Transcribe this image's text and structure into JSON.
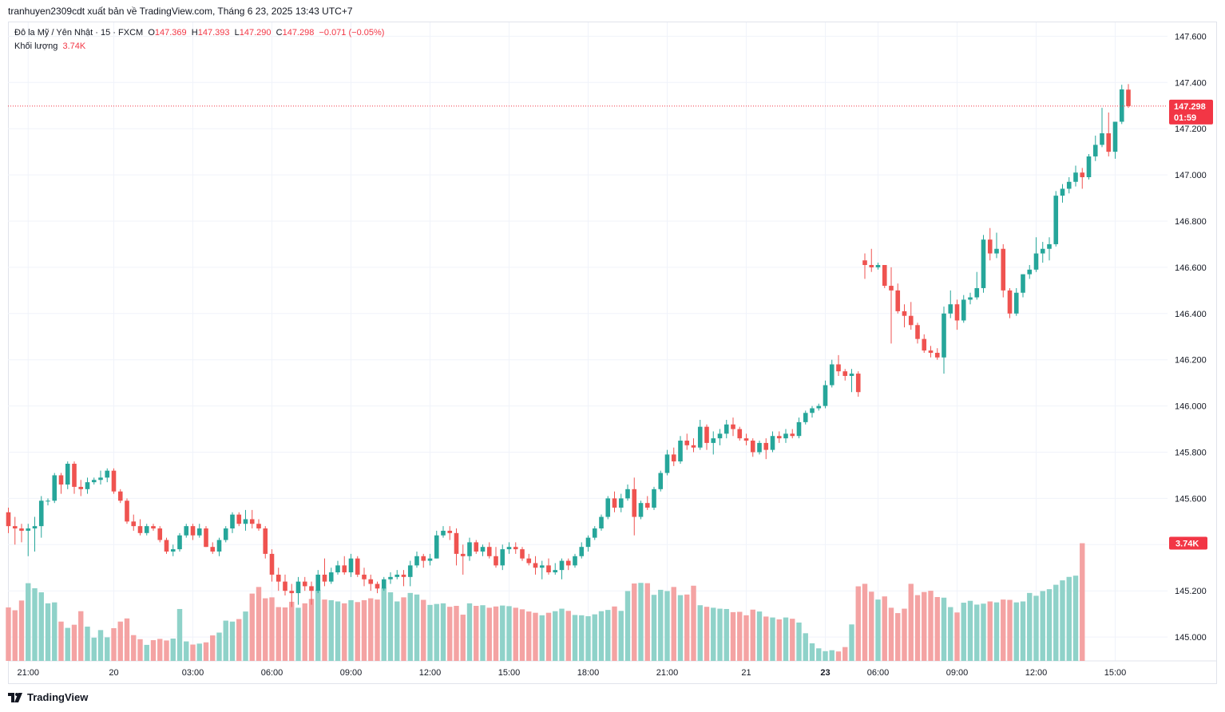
{
  "header": {
    "published_by": "tranhuyen2309cdt xuất bản về TradingView.com, Tháng 6 23, 2025 13:43 UTC+7"
  },
  "legend": {
    "symbol": "Đô la Mỹ / Yên Nhật · 15 · FXCM",
    "open_label": "O",
    "open": "147.369",
    "high_label": "H",
    "high": "147.393",
    "low_label": "L",
    "low": "147.290",
    "close_label": "C",
    "close": "147.298",
    "change": "−0.071 (−0.05%)",
    "volume_label": "Khối lượng",
    "volume": "3.74K"
  },
  "footer": {
    "brand": "TradingView"
  },
  "colors": {
    "up": "#26a69a",
    "down": "#ef5350",
    "up_volume": "#8fd2c9",
    "down_volume": "#f4a3a3",
    "price_badge": "#f23645",
    "grid": "#f0f3fa"
  },
  "chart_data": {
    "type": "candlestick",
    "symbol": "USDJPY",
    "interval": "15",
    "y_ticks": [
      "145.000",
      "145.200",
      "145.400",
      "145.600",
      "145.800",
      "146.000",
      "146.200",
      "146.400",
      "146.600",
      "146.800",
      "147.000",
      "147.200",
      "147.400",
      "147.600"
    ],
    "ylim": [
      144.9,
      147.68
    ],
    "x_ticks": [
      {
        "label": "21:00",
        "bar": 3,
        "bold": false
      },
      {
        "label": "20",
        "bar": 16,
        "bold": false
      },
      {
        "label": "03:00",
        "bar": 28,
        "bold": false
      },
      {
        "label": "06:00",
        "bar": 40,
        "bold": false
      },
      {
        "label": "09:00",
        "bar": 52,
        "bold": false
      },
      {
        "label": "12:00",
        "bar": 64,
        "bold": false
      },
      {
        "label": "15:00",
        "bar": 76,
        "bold": false
      },
      {
        "label": "18:00",
        "bar": 88,
        "bold": false
      },
      {
        "label": "21:00",
        "bar": 100,
        "bold": false
      },
      {
        "label": "21",
        "bar": 112,
        "bold": false
      },
      {
        "label": "23",
        "bar": 124,
        "bold": true
      },
      {
        "label": "06:00",
        "bar": 132,
        "bold": false
      },
      {
        "label": "09:00",
        "bar": 144,
        "bold": false
      },
      {
        "label": "12:00",
        "bar": 156,
        "bold": false
      },
      {
        "label": "15:00",
        "bar": 168,
        "bold": false
      }
    ],
    "last_price": {
      "value": 147.298,
      "label": "147.298",
      "countdown": "01:59"
    },
    "volume_badge": "3.74K",
    "ohlc": [
      [
        145.54,
        145.56,
        145.45,
        145.48
      ],
      [
        145.48,
        145.52,
        145.4,
        145.47
      ],
      [
        145.47,
        145.49,
        145.41,
        145.46
      ],
      [
        145.46,
        145.49,
        145.35,
        145.47
      ],
      [
        145.47,
        145.52,
        145.37,
        145.48
      ],
      [
        145.48,
        145.61,
        145.43,
        145.59
      ],
      [
        145.59,
        145.6,
        145.57,
        145.59
      ],
      [
        145.59,
        145.71,
        145.58,
        145.7
      ],
      [
        145.7,
        145.71,
        145.62,
        145.66
      ],
      [
        145.66,
        145.76,
        145.64,
        145.75
      ],
      [
        145.75,
        145.76,
        145.62,
        145.65
      ],
      [
        145.65,
        145.68,
        145.61,
        145.64
      ],
      [
        145.64,
        145.69,
        145.62,
        145.67
      ],
      [
        145.67,
        145.69,
        145.66,
        145.68
      ],
      [
        145.68,
        145.72,
        145.66,
        145.69
      ],
      [
        145.69,
        145.73,
        145.67,
        145.72
      ],
      [
        145.72,
        145.73,
        145.62,
        145.63
      ],
      [
        145.63,
        145.64,
        145.58,
        145.59
      ],
      [
        145.59,
        145.6,
        145.49,
        145.5
      ],
      [
        145.5,
        145.53,
        145.46,
        145.48
      ],
      [
        145.48,
        145.51,
        145.44,
        145.45
      ],
      [
        145.45,
        145.49,
        145.44,
        145.48
      ],
      [
        145.48,
        145.49,
        145.46,
        145.47
      ],
      [
        145.47,
        145.48,
        145.41,
        145.42
      ],
      [
        145.42,
        145.43,
        145.36,
        145.37
      ],
      [
        145.37,
        145.4,
        145.35,
        145.38
      ],
      [
        145.38,
        145.45,
        145.37,
        145.44
      ],
      [
        145.44,
        145.49,
        145.43,
        145.48
      ],
      [
        145.48,
        145.49,
        145.42,
        145.44
      ],
      [
        145.44,
        145.49,
        145.43,
        145.47
      ],
      [
        145.47,
        145.48,
        145.39,
        145.39
      ],
      [
        145.39,
        145.41,
        145.36,
        145.37
      ],
      [
        145.37,
        145.43,
        145.35,
        145.42
      ],
      [
        145.42,
        145.48,
        145.41,
        145.47
      ],
      [
        145.47,
        145.54,
        145.45,
        145.53
      ],
      [
        145.53,
        145.54,
        145.48,
        145.49
      ],
      [
        145.49,
        145.55,
        145.46,
        145.51
      ],
      [
        145.51,
        145.55,
        145.47,
        145.49
      ],
      [
        145.49,
        145.51,
        145.46,
        145.47
      ],
      [
        145.47,
        145.48,
        145.34,
        145.36
      ],
      [
        145.36,
        145.38,
        145.24,
        145.27
      ],
      [
        145.27,
        145.3,
        145.2,
        145.24
      ],
      [
        145.24,
        145.27,
        145.18,
        145.2
      ],
      [
        145.2,
        145.23,
        145.13,
        145.19
      ],
      [
        145.19,
        145.26,
        145.14,
        145.24
      ],
      [
        145.24,
        145.26,
        145.2,
        145.22
      ],
      [
        145.22,
        145.24,
        145.14,
        145.2
      ],
      [
        145.2,
        145.29,
        145.19,
        145.27
      ],
      [
        145.27,
        145.34,
        145.22,
        145.24
      ],
      [
        145.24,
        145.3,
        145.23,
        145.28
      ],
      [
        145.28,
        145.33,
        145.27,
        145.31
      ],
      [
        145.31,
        145.35,
        145.27,
        145.28
      ],
      [
        145.28,
        145.36,
        145.26,
        145.34
      ],
      [
        145.34,
        145.35,
        145.26,
        145.27
      ],
      [
        145.27,
        145.3,
        145.22,
        145.25
      ],
      [
        145.25,
        145.27,
        145.2,
        145.23
      ],
      [
        145.23,
        145.24,
        145.19,
        145.21
      ],
      [
        145.21,
        145.26,
        145.2,
        145.25
      ],
      [
        145.25,
        145.28,
        145.23,
        145.26
      ],
      [
        145.26,
        145.29,
        145.25,
        145.27
      ],
      [
        145.27,
        145.29,
        145.22,
        145.26
      ],
      [
        145.26,
        145.33,
        145.22,
        145.31
      ],
      [
        145.31,
        145.37,
        145.3,
        145.35
      ],
      [
        145.35,
        145.36,
        145.3,
        145.33
      ],
      [
        145.33,
        145.36,
        145.31,
        145.34
      ],
      [
        145.34,
        145.46,
        145.34,
        145.44
      ],
      [
        145.44,
        145.48,
        145.43,
        145.46
      ],
      [
        145.46,
        145.48,
        145.42,
        145.45
      ],
      [
        145.45,
        145.47,
        145.31,
        145.36
      ],
      [
        145.36,
        145.4,
        145.27,
        145.35
      ],
      [
        145.35,
        145.43,
        145.33,
        145.41
      ],
      [
        145.41,
        145.42,
        145.36,
        145.37
      ],
      [
        145.37,
        145.4,
        145.35,
        145.39
      ],
      [
        145.39,
        145.41,
        145.34,
        145.35
      ],
      [
        145.35,
        145.39,
        145.3,
        145.31
      ],
      [
        145.31,
        145.4,
        145.29,
        145.38
      ],
      [
        145.38,
        145.41,
        145.36,
        145.39
      ],
      [
        145.39,
        145.41,
        145.36,
        145.38
      ],
      [
        145.38,
        145.39,
        145.33,
        145.34
      ],
      [
        145.34,
        145.36,
        145.31,
        145.32
      ],
      [
        145.32,
        145.35,
        145.27,
        145.3
      ],
      [
        145.3,
        145.33,
        145.25,
        145.31
      ],
      [
        145.31,
        145.34,
        145.27,
        145.28
      ],
      [
        145.28,
        145.32,
        145.27,
        145.29
      ],
      [
        145.29,
        145.34,
        145.25,
        145.33
      ],
      [
        145.33,
        145.34,
        145.29,
        145.31
      ],
      [
        145.31,
        145.36,
        145.3,
        145.35
      ],
      [
        145.35,
        145.41,
        145.34,
        145.39
      ],
      [
        145.39,
        145.44,
        145.37,
        145.43
      ],
      [
        145.43,
        145.48,
        145.42,
        145.47
      ],
      [
        145.47,
        145.53,
        145.46,
        145.52
      ],
      [
        145.52,
        145.61,
        145.51,
        145.6
      ],
      [
        145.6,
        145.63,
        145.54,
        145.56
      ],
      [
        145.56,
        145.62,
        145.54,
        145.6
      ],
      [
        145.6,
        145.66,
        145.59,
        145.64
      ],
      [
        145.64,
        145.69,
        145.44,
        145.52
      ],
      [
        145.52,
        145.59,
        145.51,
        145.58
      ],
      [
        145.58,
        145.61,
        145.55,
        145.56
      ],
      [
        145.56,
        145.65,
        145.55,
        145.64
      ],
      [
        145.64,
        145.72,
        145.63,
        145.71
      ],
      [
        145.71,
        145.81,
        145.7,
        145.79
      ],
      [
        145.79,
        145.82,
        145.74,
        145.76
      ],
      [
        145.76,
        145.87,
        145.75,
        145.85
      ],
      [
        145.85,
        145.88,
        145.81,
        145.83
      ],
      [
        145.83,
        145.86,
        145.8,
        145.82
      ],
      [
        145.82,
        145.94,
        145.81,
        145.91
      ],
      [
        145.91,
        145.92,
        145.81,
        145.84
      ],
      [
        145.84,
        145.89,
        145.79,
        145.86
      ],
      [
        145.86,
        145.9,
        145.83,
        145.88
      ],
      [
        145.88,
        145.94,
        145.86,
        145.92
      ],
      [
        145.92,
        145.95,
        145.87,
        145.9
      ],
      [
        145.9,
        145.91,
        145.85,
        145.86
      ],
      [
        145.86,
        145.88,
        145.83,
        145.85
      ],
      [
        145.85,
        145.86,
        145.78,
        145.8
      ],
      [
        145.8,
        145.85,
        145.79,
        145.84
      ],
      [
        145.84,
        145.86,
        145.77,
        145.81
      ],
      [
        145.81,
        145.89,
        145.8,
        145.87
      ],
      [
        145.87,
        145.89,
        145.84,
        145.86
      ],
      [
        145.86,
        145.9,
        145.84,
        145.88
      ],
      [
        145.88,
        145.9,
        145.86,
        145.87
      ],
      [
        145.87,
        145.95,
        145.86,
        145.93
      ],
      [
        145.93,
        145.98,
        145.92,
        145.97
      ],
      [
        145.97,
        146.0,
        145.95,
        145.99
      ],
      [
        145.99,
        146.01,
        145.98,
        146.0
      ],
      [
        146.0,
        146.11,
        145.99,
        146.09
      ],
      [
        146.09,
        146.2,
        146.08,
        146.18
      ],
      [
        146.18,
        146.22,
        146.13,
        146.15
      ],
      [
        146.15,
        146.16,
        146.11,
        146.13
      ],
      [
        146.13,
        146.16,
        146.06,
        146.14
      ],
      [
        146.14,
        146.15,
        146.04,
        146.06
      ],
      [
        146.63,
        146.66,
        146.55,
        146.61
      ],
      [
        146.61,
        146.68,
        146.58,
        146.6
      ],
      [
        146.6,
        146.62,
        146.59,
        146.61
      ],
      [
        146.61,
        146.61,
        146.51,
        146.52
      ],
      [
        146.52,
        146.6,
        146.27,
        146.5
      ],
      [
        146.5,
        146.53,
        146.4,
        146.41
      ],
      [
        146.41,
        146.44,
        146.34,
        146.39
      ],
      [
        146.39,
        146.45,
        146.33,
        146.35
      ],
      [
        146.35,
        146.36,
        146.27,
        146.29
      ],
      [
        146.29,
        146.31,
        146.23,
        146.24
      ],
      [
        146.24,
        146.26,
        146.21,
        146.23
      ],
      [
        146.23,
        146.25,
        146.2,
        146.21
      ],
      [
        146.21,
        146.43,
        146.14,
        146.4
      ],
      [
        146.4,
        146.5,
        146.38,
        146.44
      ],
      [
        146.44,
        146.46,
        146.33,
        146.37
      ],
      [
        146.37,
        146.48,
        146.36,
        146.46
      ],
      [
        146.46,
        146.49,
        146.44,
        146.47
      ],
      [
        146.47,
        146.58,
        146.46,
        146.51
      ],
      [
        146.51,
        146.74,
        146.49,
        146.72
      ],
      [
        146.72,
        146.77,
        146.63,
        146.66
      ],
      [
        146.66,
        146.75,
        146.64,
        146.68
      ],
      [
        146.68,
        146.7,
        146.47,
        146.5
      ],
      [
        146.5,
        146.51,
        146.38,
        146.4
      ],
      [
        146.4,
        146.51,
        146.39,
        146.49
      ],
      [
        146.49,
        146.57,
        146.47,
        146.57
      ],
      [
        146.57,
        146.61,
        146.55,
        146.59
      ],
      [
        146.59,
        146.73,
        146.58,
        146.66
      ],
      [
        146.66,
        146.71,
        146.62,
        146.68
      ],
      [
        146.68,
        146.73,
        146.63,
        146.7
      ],
      [
        146.7,
        146.93,
        146.69,
        146.91
      ],
      [
        146.91,
        146.96,
        146.88,
        146.94
      ],
      [
        146.94,
        146.99,
        146.92,
        146.97
      ],
      [
        146.97,
        147.04,
        146.95,
        147.01
      ],
      [
        147.01,
        147.03,
        146.94,
        146.99
      ],
      [
        146.99,
        147.09,
        146.98,
        147.08
      ],
      [
        147.08,
        147.17,
        147.06,
        147.13
      ],
      [
        147.13,
        147.29,
        147.12,
        147.18
      ],
      [
        147.18,
        147.27,
        147.08,
        147.1
      ],
      [
        147.1,
        147.23,
        147.07,
        147.23
      ],
      [
        147.23,
        147.39,
        147.22,
        147.37
      ],
      [
        147.369,
        147.393,
        147.29,
        147.298
      ]
    ],
    "volume": [
      1700,
      1610,
      1920,
      2470,
      2310,
      2180,
      1830,
      1860,
      1250,
      1050,
      1150,
      1580,
      1090,
      740,
      980,
      750,
      1040,
      1250,
      1350,
      820,
      690,
      510,
      660,
      700,
      650,
      710,
      1650,
      620,
      520,
      550,
      590,
      810,
      900,
      1280,
      1250,
      1330,
      1570,
      2140,
      2350,
      1990,
      2020,
      1710,
      1700,
      1880,
      1690,
      1830,
      1970,
      2260,
      1950,
      1930,
      1890,
      1830,
      1930,
      1870,
      1930,
      1990,
      1950,
      2320,
      2180,
      1890,
      2020,
      2160,
      2110,
      1940,
      1780,
      1810,
      1830,
      1720,
      1750,
      1470,
      1830,
      1750,
      1770,
      1690,
      1730,
      1760,
      1740,
      1690,
      1640,
      1570,
      1530,
      1450,
      1530,
      1580,
      1660,
      1590,
      1460,
      1450,
      1420,
      1480,
      1580,
      1620,
      1730,
      1590,
      2220,
      2460,
      2480,
      2470,
      2100,
      2260,
      2220,
      2350,
      2090,
      2110,
      2390,
      1770,
      1720,
      1690,
      1660,
      1650,
      1550,
      1560,
      1450,
      1630,
      1570,
      1410,
      1380,
      1320,
      1380,
      1340,
      1220,
      880,
      560,
      400,
      310,
      340,
      300,
      440,
      1160,
      2370,
      2450,
      2200,
      1950,
      2050,
      1690,
      1520,
      1660,
      2450,
      2090,
      2190,
      2230,
      2030,
      2010,
      1710,
      1540,
      1850,
      1910,
      1790,
      1820,
      1890,
      1860,
      1950,
      1940,
      1860,
      1890,
      2160,
      2070,
      2220,
      2280,
      2420,
      2560,
      2670,
      2710,
      3740
    ],
    "volume_max": 5200
  }
}
